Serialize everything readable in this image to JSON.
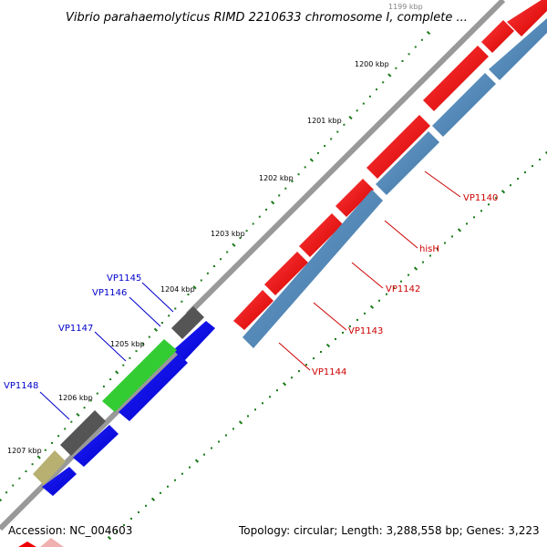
{
  "title": "Vibrio parahaemolyticus RIMD 2210633 chromosome I, complete ...",
  "footer": {
    "accession": "Accession: NC_004603",
    "summary": "Topology: circular; Length: 3,288,558 bp; Genes: 3,223"
  },
  "ticks": [
    "1199 kbp",
    "1200 kbp",
    "1201 kbp",
    "1202 kbp",
    "1203 kbp",
    "1204 kbp",
    "1205 kbp",
    "1206 kbp",
    "1207 kbp"
  ],
  "labels_right": [
    "VP1140",
    "hisH",
    "VP1142",
    "VP1143",
    "VP1144"
  ],
  "labels_left": [
    "VP1145",
    "VP1146",
    "VP1147",
    "VP1148"
  ],
  "colors": {
    "right_label": "#cc0000",
    "left_label": "#0000cc",
    "red_gene": "#ee0000",
    "steel_gene": "#4a82b4",
    "gray_gene": "#555555",
    "green_gene": "#33cc33",
    "blue_gene": "#0000ee",
    "olive_gene": "#b8b070",
    "backbone": "#8a8a8a",
    "dots": "#1a7a1a"
  }
}
